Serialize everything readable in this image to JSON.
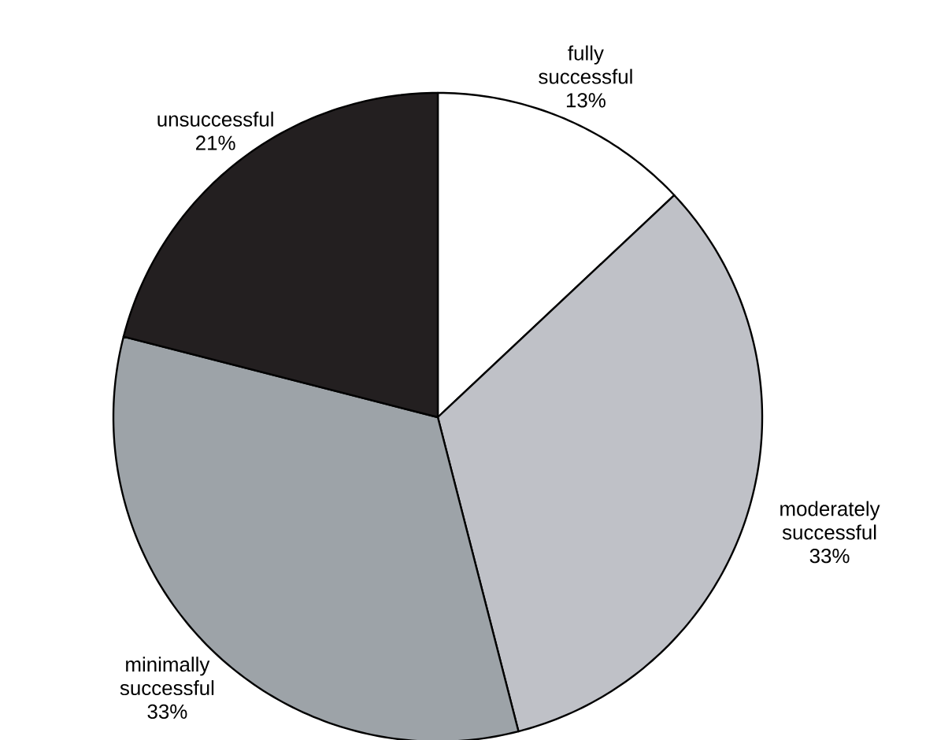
{
  "chart_data": {
    "type": "pie",
    "categories": [
      "fully successful",
      "moderately successful",
      "minimally successful",
      "unsuccessful"
    ],
    "values": [
      13,
      33,
      33,
      21
    ],
    "value_labels": [
      "13%",
      "33%",
      "33%",
      "21%"
    ],
    "colors": [
      "#ffffff",
      "#bfc1c7",
      "#9da3a8",
      "#231f20"
    ],
    "legend": false
  }
}
